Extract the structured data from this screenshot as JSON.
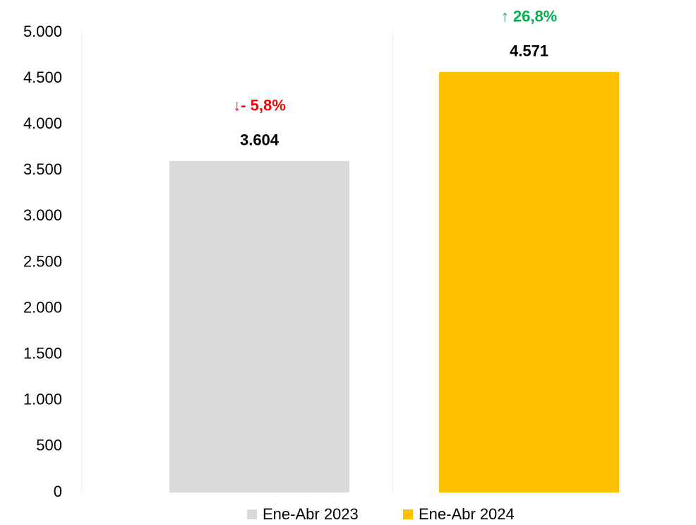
{
  "chart_data": {
    "type": "bar",
    "categories": [
      null
    ],
    "series": [
      {
        "name": "Ene-Abr 2023",
        "color": "#d9d9d9",
        "values": [
          3604
        ],
        "value_labels": [
          "3.604"
        ],
        "annotation": {
          "text": "↓- 5,8%",
          "color": "#ff0000"
        }
      },
      {
        "name": "Ene-Abr 2024",
        "color": "#ffc000",
        "values": [
          4571
        ],
        "value_labels": [
          "4.571"
        ],
        "annotation": {
          "text": "↑ 26,8%",
          "color": "#00b050"
        }
      }
    ],
    "ylim": [
      0,
      5000
    ],
    "yticks": [
      0,
      500,
      {
        "value": 1000,
        "label": "1.000"
      },
      {
        "value": 1500,
        "label": "1.500"
      },
      {
        "value": 2000,
        "label": "2.000"
      },
      {
        "value": 2500,
        "label": "2.500"
      },
      {
        "value": 3000,
        "label": "3.000"
      },
      {
        "value": 3500,
        "label": "3.500"
      },
      {
        "value": 4000,
        "label": "4.000"
      },
      {
        "value": 4500,
        "label": "4.500"
      },
      {
        "value": 5000,
        "label": "5.000"
      }
    ],
    "grid": false,
    "legend": "bottom"
  }
}
